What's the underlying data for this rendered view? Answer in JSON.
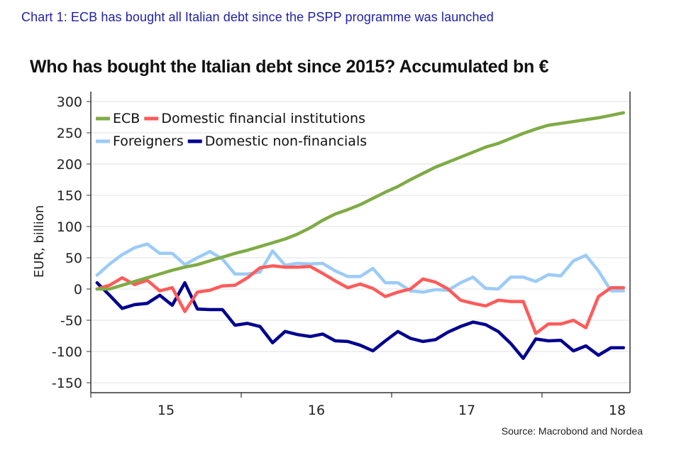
{
  "caption": "Chart 1: ECB has bought all Italian debt since the PSPP programme was launched",
  "colors": {
    "caption": "#1f1fa8",
    "ecb": "#7fab45",
    "domestic_financial": "#ff5a5a",
    "foreigners": "#9ccbf7",
    "domestic_nonfinancial": "#00008f",
    "grid": "#e6e6e6",
    "axis": "#333333"
  },
  "source": "Source: Macrobond and Nordea",
  "chart_data": {
    "type": "line",
    "title": "Who has bought the Italian debt since 2015? Accumulated bn €",
    "xlabel": "",
    "ylabel": "EUR, billion",
    "ylim": [
      -165,
      315
    ],
    "yticks": [
      300,
      250,
      200,
      150,
      100,
      50,
      0,
      -50,
      -100,
      -150
    ],
    "ytick_labels": [
      "300",
      "250",
      "200",
      "150",
      "100",
      "50",
      "0",
      "-50",
      "-100",
      "-150"
    ],
    "xtick_labels": [
      "15",
      "16",
      "17",
      "18"
    ],
    "x_start": "2015-01",
    "x_frequency": "monthly",
    "grid": true,
    "legend_position": "top-left",
    "legend": [
      "ECB",
      "Domestic financial institutions",
      "Foreigners",
      "Domestic non-financials"
    ],
    "series": [
      {
        "name": "ECB",
        "key": "ecb",
        "values": [
          0,
          0,
          6,
          12,
          18,
          24,
          30,
          35,
          39,
          45,
          51,
          57,
          62,
          68,
          74,
          80,
          88,
          98,
          110,
          120,
          127,
          135,
          145,
          155,
          164,
          175,
          185,
          195,
          203,
          211,
          219,
          227,
          233,
          241,
          249,
          256,
          262,
          265,
          268,
          271,
          274,
          278,
          282
        ]
      },
      {
        "name": "Domestic financial institutions",
        "key": "domestic_financial",
        "values": [
          0,
          6,
          18,
          7,
          14,
          -3,
          2,
          -36,
          -5,
          -2,
          5,
          6,
          18,
          34,
          37,
          35,
          35,
          36,
          25,
          13,
          2,
          8,
          1,
          -12,
          -5,
          0,
          16,
          11,
          0,
          -18,
          -23,
          -27,
          -18,
          -20,
          -20,
          -71,
          -56,
          -56,
          -50,
          -62,
          -12,
          2,
          2
        ]
      },
      {
        "name": "Foreigners",
        "key": "foreigners",
        "values": [
          22,
          40,
          55,
          66,
          72,
          57,
          57,
          39,
          50,
          60,
          48,
          24,
          24,
          27,
          61,
          38,
          41,
          40,
          41,
          29,
          20,
          20,
          33,
          10,
          10,
          -3,
          -5,
          -1,
          -2,
          10,
          19,
          1,
          0,
          19,
          19,
          12,
          23,
          21,
          45,
          54,
          29,
          -3,
          -3
        ]
      },
      {
        "name": "Domestic non-financials",
        "key": "domestic_nonfinancial",
        "values": [
          10,
          -10,
          -31,
          -25,
          -23,
          -10,
          -26,
          10,
          -32,
          -33,
          -33,
          -58,
          -55,
          -60,
          -86,
          -68,
          -73,
          -76,
          -72,
          -83,
          -84,
          -90,
          -99,
          -83,
          -68,
          -79,
          -84,
          -81,
          -69,
          -60,
          -53,
          -57,
          -68,
          -87,
          -111,
          -80,
          -83,
          -82,
          -99,
          -91,
          -106,
          -94,
          -94
        ]
      }
    ]
  }
}
